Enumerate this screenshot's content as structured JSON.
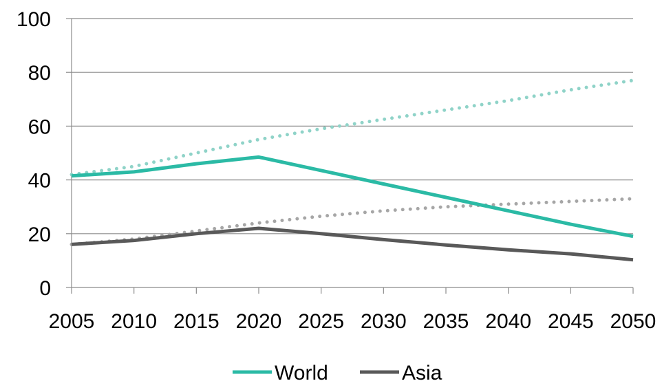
{
  "chart_data": {
    "type": "line",
    "x": [
      2005,
      2010,
      2015,
      2020,
      2025,
      2030,
      2035,
      2040,
      2045,
      2050
    ],
    "xlim": [
      2005,
      2050
    ],
    "ylim": [
      0,
      100
    ],
    "yticks": [
      0,
      20,
      40,
      60,
      80,
      100
    ],
    "grid": true,
    "legend_position": "bottom",
    "series": [
      {
        "name": "World",
        "style": "solid",
        "color": "#2bbaa5",
        "values": [
          41.5,
          43,
          46,
          48.5,
          43.5,
          38.5,
          33.5,
          28.5,
          23.5,
          19
        ]
      },
      {
        "name": "Asia",
        "style": "solid",
        "color": "#595959",
        "values": [
          16,
          17.5,
          20,
          22,
          20,
          17.8,
          15.8,
          14,
          12.5,
          10.3
        ]
      },
      {
        "style": "dotted",
        "color": "#8fd3c8",
        "values": [
          42,
          45,
          50,
          55,
          59,
          62.5,
          66,
          69.5,
          73.5,
          77
        ]
      },
      {
        "style": "dotted",
        "color": "#a6a6a6",
        "values": [
          16,
          18,
          21,
          24,
          26.5,
          28.5,
          30,
          31,
          32,
          33
        ]
      }
    ]
  }
}
